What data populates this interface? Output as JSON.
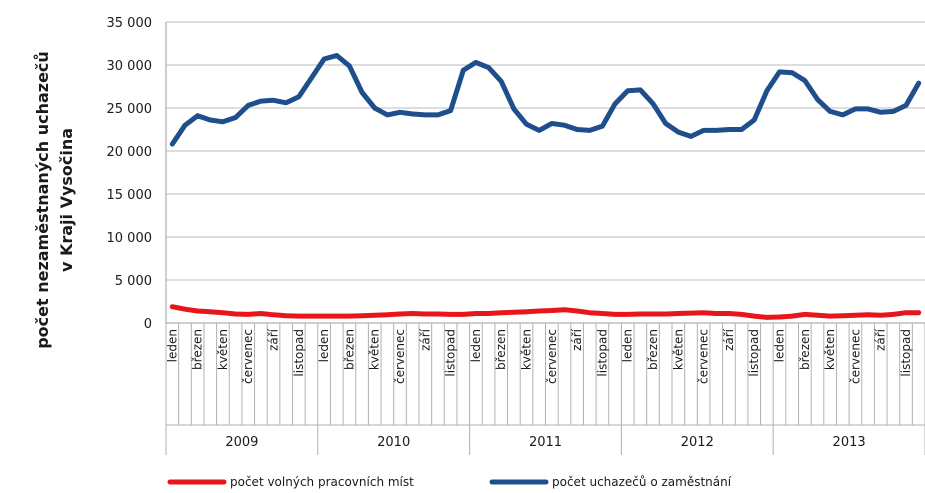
{
  "chart_data": {
    "type": "line",
    "title": "",
    "ylabel_lines": [
      "počet nezaměstnaných uchazečů",
      "v Kraji Vysočina"
    ],
    "ylim": [
      0,
      35000
    ],
    "yticks": [
      "0",
      "5 000",
      "10 000",
      "15 000",
      "20 000",
      "25 000",
      "30 000",
      "35 000"
    ],
    "grid": true,
    "legend_position": "bottom",
    "years": [
      "2009",
      "2010",
      "2011",
      "2012",
      "2013"
    ],
    "month_labels": [
      "leden",
      "",
      "březen",
      "",
      "květen",
      "",
      "červenec",
      "",
      "září",
      "",
      "listopad",
      ""
    ],
    "series": [
      {
        "name": "počet volných pracovních míst",
        "color": "#e8161b",
        "values": [
          1900,
          1600,
          1400,
          1300,
          1200,
          1050,
          1000,
          1100,
          950,
          850,
          800,
          800,
          800,
          800,
          800,
          850,
          900,
          950,
          1050,
          1100,
          1050,
          1050,
          1000,
          1000,
          1100,
          1100,
          1200,
          1250,
          1300,
          1400,
          1450,
          1550,
          1400,
          1200,
          1100,
          1000,
          1000,
          1050,
          1050,
          1050,
          1100,
          1150,
          1200,
          1100,
          1100,
          1000,
          800,
          650,
          700,
          800,
          1000,
          900,
          800,
          850,
          900,
          950,
          900,
          1000,
          1200,
          1200
        ]
      },
      {
        "name": "počet uchazečů o zaměstnání",
        "color": "#1f4e8c",
        "values": [
          20800,
          23000,
          24100,
          23600,
          23400,
          23900,
          25300,
          25800,
          25900,
          25600,
          26300,
          28500,
          30700,
          31100,
          29900,
          26800,
          25000,
          24200,
          24500,
          24300,
          24200,
          24200,
          24700,
          29400,
          30300,
          29700,
          28100,
          24900,
          23100,
          22400,
          23200,
          23000,
          22500,
          22400,
          22900,
          25500,
          27000,
          27100,
          25500,
          23200,
          22200,
          21700,
          22400,
          22400,
          22500,
          22500,
          23600,
          27000,
          29200,
          29100,
          28200,
          26000,
          24600,
          24200,
          24900,
          24900,
          24500,
          24600,
          25300,
          27900
        ]
      }
    ]
  }
}
